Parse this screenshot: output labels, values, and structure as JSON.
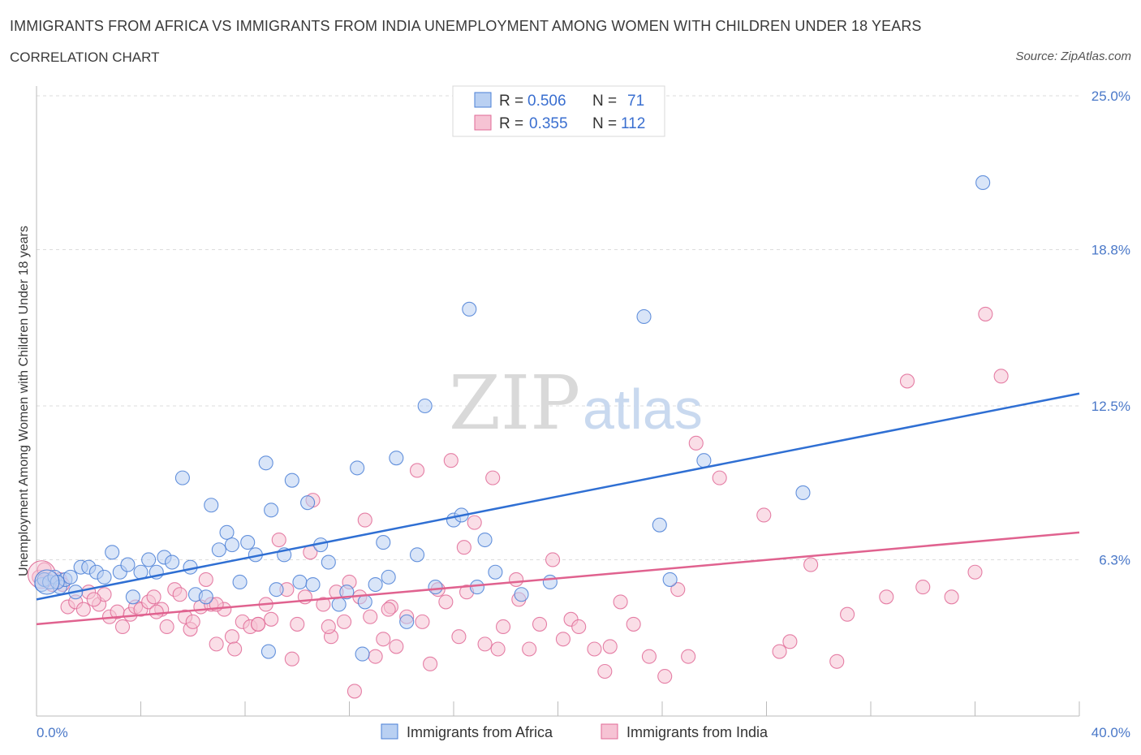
{
  "title": "IMMIGRANTS FROM AFRICA VS IMMIGRANTS FROM INDIA UNEMPLOYMENT AMONG WOMEN WITH CHILDREN UNDER 18 YEARS",
  "subtitle": "CORRELATION CHART",
  "source": "Source: ZipAtlas.com",
  "watermark": {
    "part1": "ZIP",
    "part2": "atlas"
  },
  "legend": {
    "africa": {
      "r_label": "R =",
      "r_value": "0.506",
      "n_label": "N =",
      "n_value": "71"
    },
    "india": {
      "r_label": "R =",
      "r_value": "0.355",
      "n_label": "N =",
      "n_value": "112"
    }
  },
  "bottom_legend": {
    "africa": "Immigrants from Africa",
    "india": "Immigrants from India"
  },
  "chart_data": {
    "type": "scatter",
    "xlabel": "",
    "ylabel": "Unemployment Among Women with Children Under 18 years",
    "xlim": [
      0,
      40
    ],
    "ylim": [
      0,
      25
    ],
    "x_tick_labels": [
      "0.0%",
      "40.0%"
    ],
    "y_tick_labels": [
      {
        "value": 6.3,
        "label": "6.3%"
      },
      {
        "value": 12.5,
        "label": "12.5%"
      },
      {
        "value": 18.8,
        "label": "18.8%"
      },
      {
        "value": 25.0,
        "label": "25.0%"
      }
    ],
    "grid": true,
    "legend_position": "top-center",
    "colors": {
      "africa": "#4a7fd6",
      "india": "#e06a96",
      "africa_fill": "#b9d0f2",
      "india_fill": "#f6c3d4"
    },
    "series": [
      {
        "name": "Immigrants from Africa",
        "trend": {
          "x": [
            0,
            40
          ],
          "y": [
            4.7,
            13.0
          ]
        },
        "points": [
          [
            0.2,
            5.3
          ],
          [
            0.3,
            5.5
          ],
          [
            0.5,
            5.4
          ],
          [
            0.7,
            5.6
          ],
          [
            0.9,
            5.2
          ],
          [
            1.1,
            5.5
          ],
          [
            1.3,
            5.6
          ],
          [
            1.5,
            5.0
          ],
          [
            1.7,
            6.0
          ],
          [
            2.0,
            6.0
          ],
          [
            2.3,
            5.8
          ],
          [
            2.6,
            5.6
          ],
          [
            2.9,
            6.6
          ],
          [
            3.2,
            5.8
          ],
          [
            3.5,
            6.1
          ],
          [
            3.7,
            4.8
          ],
          [
            4.0,
            5.8
          ],
          [
            4.3,
            6.3
          ],
          [
            4.6,
            5.8
          ],
          [
            4.9,
            6.4
          ],
          [
            5.2,
            6.2
          ],
          [
            5.6,
            9.6
          ],
          [
            5.9,
            6.0
          ],
          [
            6.1,
            4.9
          ],
          [
            6.5,
            4.8
          ],
          [
            6.7,
            8.5
          ],
          [
            7.0,
            6.7
          ],
          [
            7.3,
            7.4
          ],
          [
            7.5,
            6.9
          ],
          [
            7.8,
            5.4
          ],
          [
            8.1,
            7.0
          ],
          [
            8.4,
            6.5
          ],
          [
            8.8,
            10.2
          ],
          [
            9.0,
            8.3
          ],
          [
            9.2,
            5.1
          ],
          [
            9.5,
            6.5
          ],
          [
            9.8,
            9.5
          ],
          [
            10.1,
            5.4
          ],
          [
            10.4,
            8.6
          ],
          [
            10.6,
            5.3
          ],
          [
            10.9,
            6.9
          ],
          [
            11.2,
            6.2
          ],
          [
            11.6,
            4.5
          ],
          [
            11.9,
            5.0
          ],
          [
            12.3,
            10.0
          ],
          [
            12.6,
            4.6
          ],
          [
            13.0,
            5.3
          ],
          [
            13.3,
            7.0
          ],
          [
            13.5,
            5.6
          ],
          [
            13.8,
            10.4
          ],
          [
            14.2,
            3.8
          ],
          [
            14.6,
            6.5
          ],
          [
            14.9,
            12.5
          ],
          [
            15.3,
            5.2
          ],
          [
            16.0,
            7.9
          ],
          [
            16.3,
            8.1
          ],
          [
            16.6,
            16.4
          ],
          [
            16.9,
            5.2
          ],
          [
            17.2,
            7.1
          ],
          [
            17.6,
            5.8
          ],
          [
            18.6,
            4.9
          ],
          [
            19.7,
            5.4
          ],
          [
            23.3,
            16.1
          ],
          [
            23.9,
            7.7
          ],
          [
            24.3,
            5.5
          ],
          [
            25.6,
            10.3
          ],
          [
            29.4,
            9.0
          ],
          [
            36.3,
            21.5
          ],
          [
            8.9,
            2.6
          ],
          [
            12.5,
            2.5
          ],
          [
            0.8,
            5.4
          ]
        ]
      },
      {
        "name": "Immigrants from India",
        "trend": {
          "x": [
            0,
            40
          ],
          "y": [
            3.7,
            7.4
          ]
        },
        "points": [
          [
            0.1,
            5.6
          ],
          [
            0.4,
            5.5
          ],
          [
            0.6,
            5.3
          ],
          [
            0.9,
            5.5
          ],
          [
            1.2,
            4.4
          ],
          [
            1.5,
            4.6
          ],
          [
            1.8,
            4.3
          ],
          [
            2.0,
            5.0
          ],
          [
            2.4,
            4.5
          ],
          [
            2.6,
            4.9
          ],
          [
            2.8,
            4.0
          ],
          [
            3.1,
            4.2
          ],
          [
            3.3,
            3.6
          ],
          [
            3.6,
            4.1
          ],
          [
            3.8,
            4.4
          ],
          [
            4.0,
            4.3
          ],
          [
            4.3,
            4.6
          ],
          [
            4.5,
            4.8
          ],
          [
            4.8,
            4.3
          ],
          [
            5.0,
            3.6
          ],
          [
            5.3,
            5.1
          ],
          [
            5.5,
            4.9
          ],
          [
            5.7,
            4.0
          ],
          [
            5.9,
            3.5
          ],
          [
            6.0,
            3.8
          ],
          [
            6.3,
            4.4
          ],
          [
            6.5,
            5.5
          ],
          [
            6.7,
            4.5
          ],
          [
            6.9,
            2.9
          ],
          [
            7.2,
            4.3
          ],
          [
            7.5,
            3.2
          ],
          [
            7.6,
            2.7
          ],
          [
            7.9,
            3.8
          ],
          [
            8.2,
            3.6
          ],
          [
            8.5,
            3.7
          ],
          [
            8.8,
            4.5
          ],
          [
            9.0,
            3.9
          ],
          [
            9.3,
            7.1
          ],
          [
            9.6,
            5.1
          ],
          [
            9.8,
            2.3
          ],
          [
            10.0,
            3.7
          ],
          [
            10.3,
            4.8
          ],
          [
            10.5,
            6.6
          ],
          [
            10.6,
            8.7
          ],
          [
            11.0,
            4.5
          ],
          [
            11.3,
            3.2
          ],
          [
            11.5,
            5.0
          ],
          [
            11.8,
            3.8
          ],
          [
            12.0,
            5.4
          ],
          [
            12.4,
            4.8
          ],
          [
            12.6,
            7.9
          ],
          [
            12.8,
            4.0
          ],
          [
            13.0,
            2.4
          ],
          [
            13.3,
            3.1
          ],
          [
            13.6,
            4.4
          ],
          [
            13.8,
            2.8
          ],
          [
            14.2,
            4.0
          ],
          [
            14.6,
            9.9
          ],
          [
            14.8,
            3.8
          ],
          [
            15.1,
            2.1
          ],
          [
            15.4,
            5.1
          ],
          [
            15.7,
            4.6
          ],
          [
            15.9,
            10.3
          ],
          [
            16.2,
            3.2
          ],
          [
            16.4,
            6.8
          ],
          [
            16.8,
            7.8
          ],
          [
            17.2,
            2.9
          ],
          [
            17.5,
            9.6
          ],
          [
            17.9,
            3.6
          ],
          [
            18.4,
            5.5
          ],
          [
            18.5,
            4.7
          ],
          [
            18.9,
            2.7
          ],
          [
            19.3,
            3.7
          ],
          [
            19.8,
            6.3
          ],
          [
            20.2,
            3.1
          ],
          [
            20.5,
            3.9
          ],
          [
            20.8,
            3.6
          ],
          [
            21.4,
            2.7
          ],
          [
            22.0,
            2.8
          ],
          [
            22.4,
            4.6
          ],
          [
            22.9,
            3.7
          ],
          [
            23.5,
            2.4
          ],
          [
            24.1,
            1.6
          ],
          [
            24.6,
            5.1
          ],
          [
            25.3,
            11.0
          ],
          [
            26.2,
            9.6
          ],
          [
            27.9,
            8.1
          ],
          [
            28.5,
            2.6
          ],
          [
            29.7,
            6.1
          ],
          [
            31.1,
            4.1
          ],
          [
            32.6,
            4.8
          ],
          [
            33.4,
            13.5
          ],
          [
            34.0,
            5.2
          ],
          [
            35.1,
            4.8
          ],
          [
            36.0,
            5.8
          ],
          [
            36.4,
            16.2
          ],
          [
            37.0,
            13.7
          ],
          [
            0.3,
            5.9
          ],
          [
            1.0,
            5.3
          ],
          [
            2.2,
            4.7
          ],
          [
            4.6,
            4.2
          ],
          [
            6.9,
            4.5
          ],
          [
            8.5,
            3.7
          ],
          [
            11.2,
            3.6
          ],
          [
            12.2,
            1.0
          ],
          [
            13.5,
            4.3
          ],
          [
            16.5,
            5.0
          ],
          [
            17.7,
            2.7
          ],
          [
            21.8,
            1.8
          ],
          [
            25.0,
            2.4
          ],
          [
            28.9,
            3.0
          ],
          [
            30.7,
            2.2
          ]
        ]
      }
    ]
  }
}
